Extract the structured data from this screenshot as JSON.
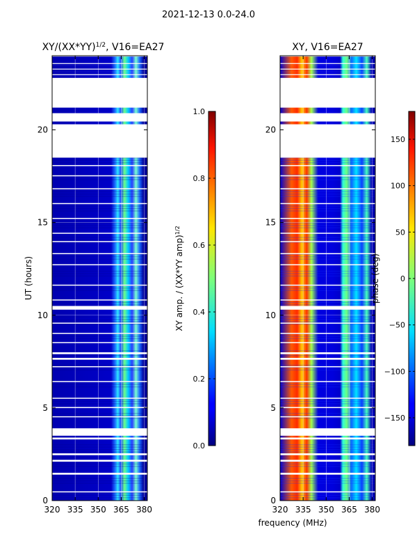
{
  "suptitle": "2021-12-13 0.0-24.0",
  "chart_data": [
    {
      "type": "heatmap",
      "title": "XY/(XX*YY)",
      "title_sup": "1/2",
      "title_suffix": ", V16=EA27",
      "xlabel": "",
      "ylabel": "UT (hours)",
      "xlim": [
        320,
        382
      ],
      "ylim": [
        0,
        24
      ],
      "xticks": [
        320,
        335,
        350,
        365,
        380
      ],
      "yticks": [
        0,
        5,
        10,
        15,
        20
      ],
      "colorbar": {
        "label": "XY amp. / (XX*YY amp)",
        "label_sup": "1/2",
        "range": [
          0.0,
          1.0
        ],
        "ticks": [
          "0.0",
          "0.2",
          "0.4",
          "0.6",
          "0.8",
          "1.0"
        ],
        "tick_values": [
          0.0,
          0.2,
          0.4,
          0.6,
          0.8,
          1.0
        ]
      },
      "colormap": "jet",
      "flagged_hours": [
        [
          0.45,
          0.5
        ],
        [
          1.4,
          1.5
        ],
        [
          2.1,
          2.2
        ],
        [
          2.45,
          2.55
        ],
        [
          3.3,
          3.4
        ],
        [
          3.5,
          3.9
        ],
        [
          4.5,
          4.55
        ],
        [
          5.0,
          5.05
        ],
        [
          5.5,
          5.55
        ],
        [
          6.4,
          6.45
        ],
        [
          7.2,
          7.25
        ],
        [
          7.6,
          7.7
        ],
        [
          7.9,
          8.0
        ],
        [
          8.5,
          8.55
        ],
        [
          9.0,
          9.05
        ],
        [
          9.55,
          9.6
        ],
        [
          10.3,
          10.5
        ],
        [
          10.8,
          10.85
        ],
        [
          11.6,
          11.65
        ],
        [
          12.7,
          12.75
        ],
        [
          13.3,
          13.35
        ],
        [
          13.95,
          14.0
        ],
        [
          14.4,
          14.45
        ],
        [
          15.2,
          15.25
        ],
        [
          16.0,
          16.05
        ],
        [
          16.8,
          16.85
        ],
        [
          17.5,
          17.55
        ],
        [
          18.05,
          18.1
        ],
        [
          18.5,
          21.2
        ],
        [
          22.8,
          22.9
        ],
        [
          23.1,
          23.15
        ],
        [
          23.45,
          23.5
        ]
      ],
      "data_present_hours": [
        [
          20.3,
          20.45
        ],
        [
          20.9,
          21.2
        ]
      ]
    },
    {
      "type": "heatmap",
      "title": "XY, V16=EA27",
      "xlabel": "frequency (MHz)",
      "ylabel": "",
      "xlim": [
        320,
        382
      ],
      "ylim": [
        0,
        24
      ],
      "xticks": [
        320,
        335,
        350,
        365,
        380
      ],
      "yticks": [
        0,
        5,
        10,
        15,
        20
      ],
      "colorbar": {
        "label": "phase (deg)",
        "range": [
          -180,
          180
        ],
        "ticks": [
          "150",
          "100",
          "50",
          "0",
          "−50",
          "−100",
          "−150"
        ],
        "tick_values": [
          150,
          100,
          50,
          0,
          -50,
          -100,
          -150
        ]
      },
      "colormap": "jet"
    }
  ]
}
